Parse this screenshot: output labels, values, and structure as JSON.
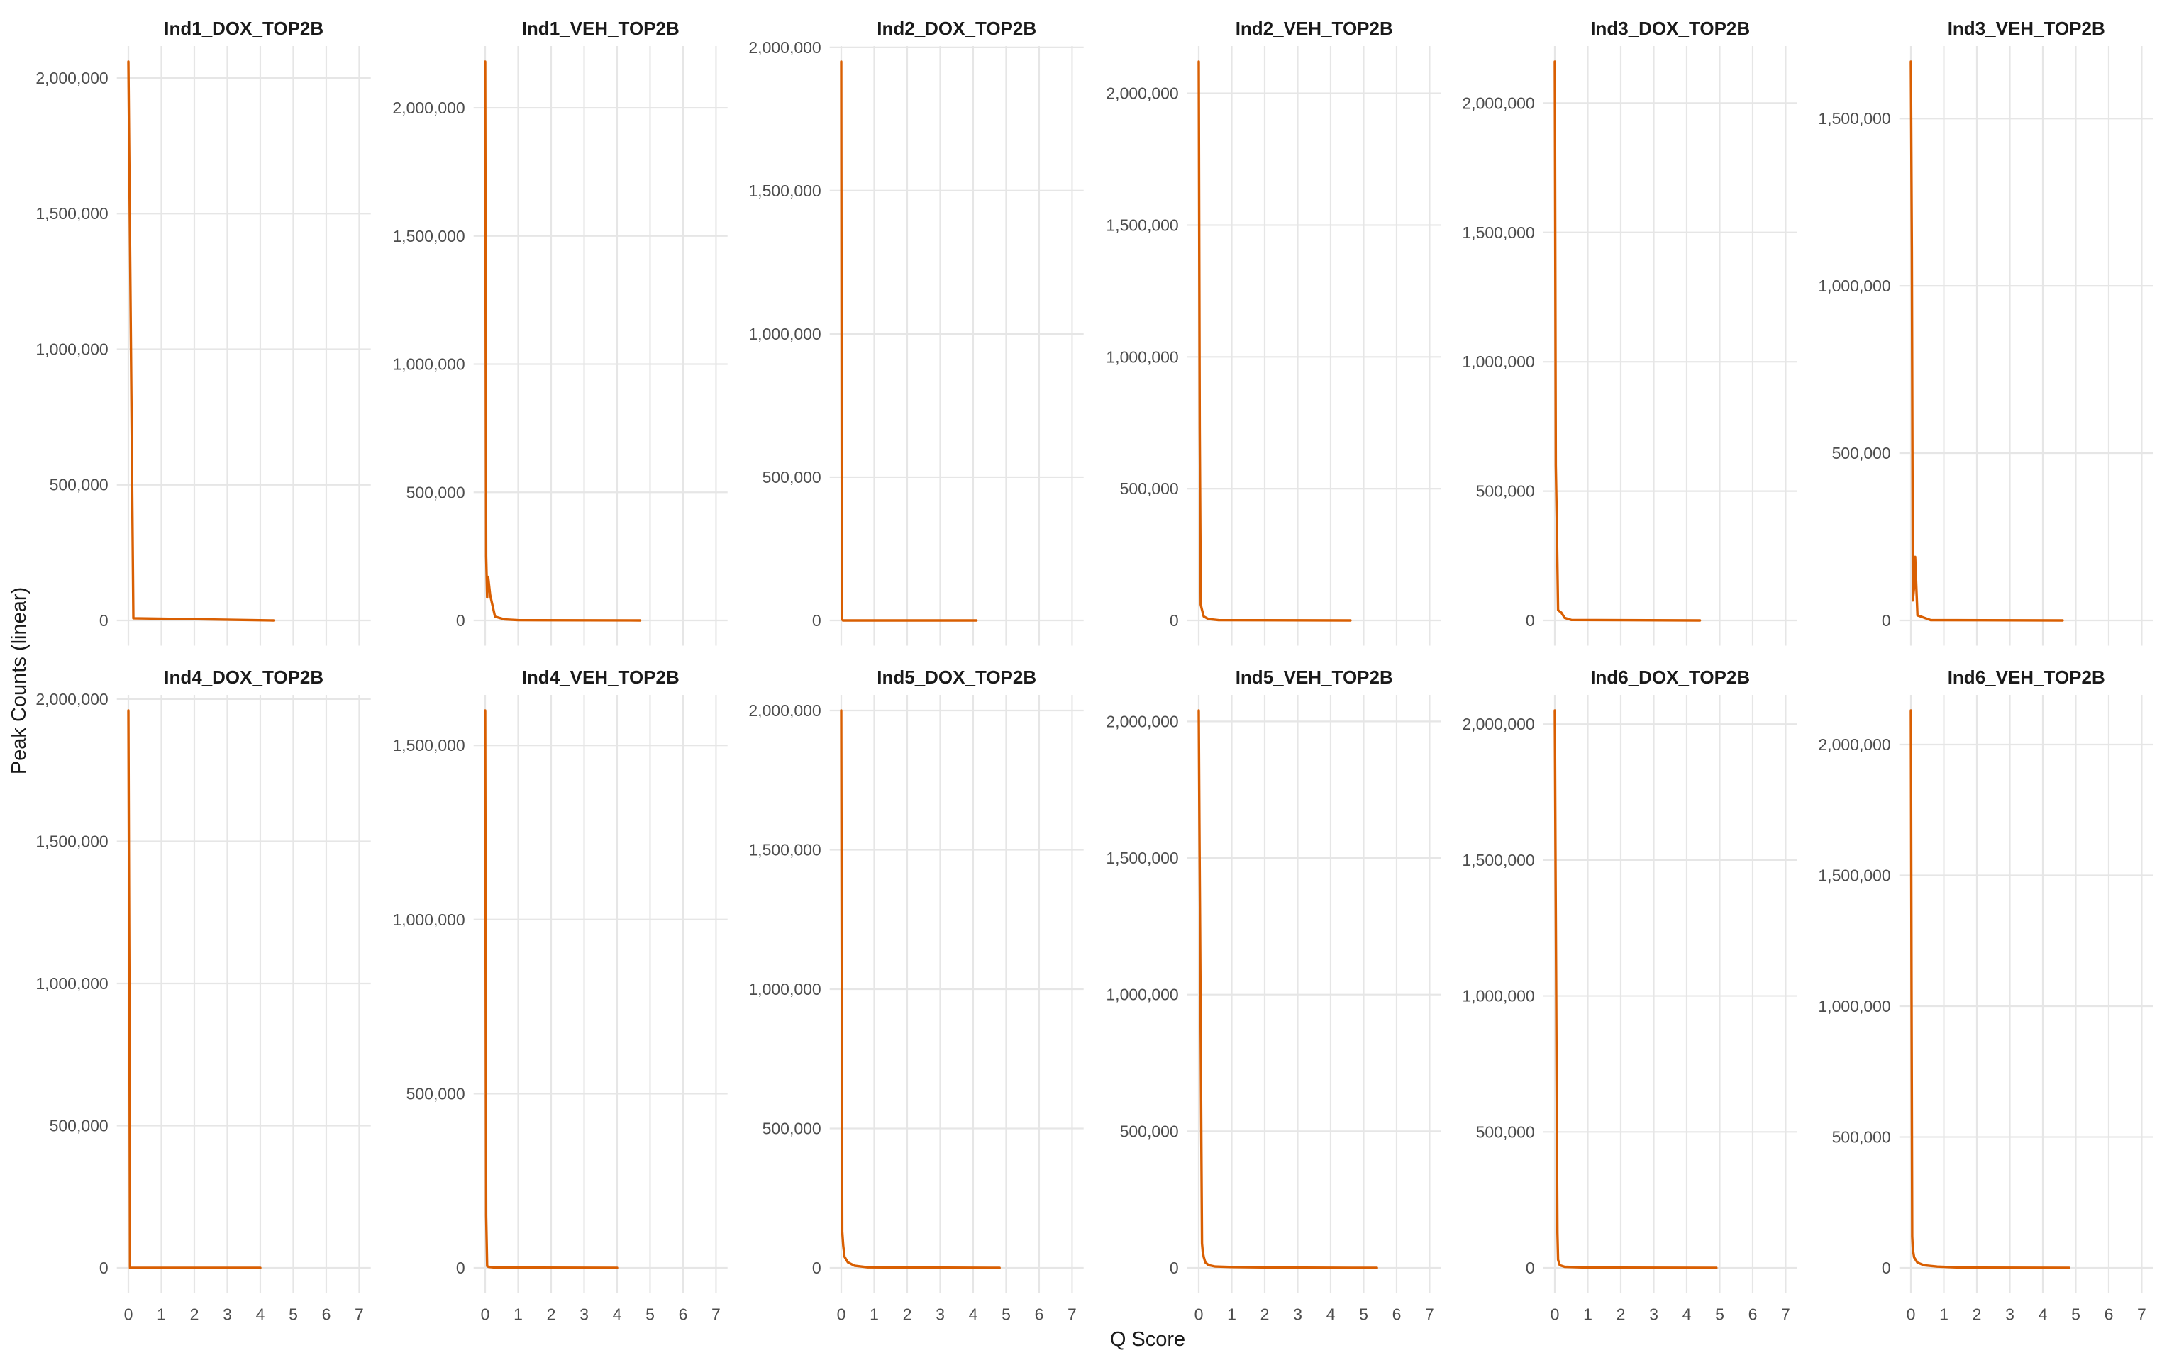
{
  "chart_data": {
    "type": "line",
    "layout": "faceted",
    "xlabel": "Q Score",
    "ylabel": "Peak Counts (linear)",
    "x_ticks": [
      0,
      1,
      2,
      3,
      4,
      5,
      6,
      7
    ],
    "xlim": [
      0,
      7
    ],
    "grid": true,
    "legend": "none",
    "line_color": "#d95f02",
    "panels": [
      {
        "title": "Ind1_DOX_TOP2B",
        "ylim": [
          0,
          2060000
        ],
        "y_ticks": [
          0,
          500000,
          1000000,
          1500000,
          2000000
        ],
        "x": [
          0,
          0.03,
          0.06,
          0.09,
          0.12,
          0.15,
          4.4
        ],
        "y": [
          2060000,
          1650000,
          1240000,
          830000,
          410000,
          8000,
          0
        ]
      },
      {
        "title": "Ind1_VEH_TOP2B",
        "ylim": [
          0,
          2180000
        ],
        "y_ticks": [
          0,
          500000,
          1000000,
          1500000,
          2000000
        ],
        "x": [
          0,
          0.03,
          0.06,
          0.09,
          0.15,
          0.3,
          0.6,
          1.0,
          4.7
        ],
        "y": [
          2180000,
          250000,
          90000,
          170000,
          100000,
          15000,
          4000,
          1000,
          0
        ]
      },
      {
        "title": "Ind2_DOX_TOP2B",
        "ylim": [
          0,
          1950000
        ],
        "y_ticks": [
          0,
          500000,
          1000000,
          1500000,
          2000000
        ],
        "x": [
          0,
          0.02,
          0.05,
          4.1
        ],
        "y": [
          1950000,
          5000,
          0,
          0
        ]
      },
      {
        "title": "Ind2_VEH_TOP2B",
        "ylim": [
          0,
          2120000
        ],
        "y_ticks": [
          0,
          500000,
          1000000,
          1500000,
          2000000
        ],
        "x": [
          0,
          0.03,
          0.06,
          0.1,
          0.15,
          0.3,
          0.6,
          4.6
        ],
        "y": [
          2120000,
          730000,
          60000,
          40000,
          15000,
          5000,
          1000,
          0
        ]
      },
      {
        "title": "Ind3_DOX_TOP2B",
        "ylim": [
          0,
          2160000
        ],
        "y_ticks": [
          0,
          500000,
          1000000,
          1500000,
          2000000
        ],
        "x": [
          0,
          0.03,
          0.06,
          0.1,
          0.2,
          0.3,
          0.5,
          4.4
        ],
        "y": [
          2160000,
          600000,
          380000,
          40000,
          30000,
          10000,
          2000,
          0
        ]
      },
      {
        "title": "Ind3_VEH_TOP2B",
        "ylim": [
          0,
          1670000
        ],
        "y_ticks": [
          0,
          500000,
          1000000,
          1500000
        ],
        "x": [
          0,
          0.03,
          0.06,
          0.1,
          0.13,
          0.2,
          0.35,
          0.6,
          4.6
        ],
        "y": [
          1670000,
          1100000,
          60000,
          100000,
          190000,
          15000,
          10000,
          1000,
          0
        ]
      },
      {
        "title": "Ind4_DOX_TOP2B",
        "ylim": [
          0,
          1960000
        ],
        "y_ticks": [
          0,
          500000,
          1000000,
          1500000,
          2000000
        ],
        "x": [
          0,
          0.03,
          0.05,
          4.0
        ],
        "y": [
          1960000,
          980000,
          0,
          0
        ]
      },
      {
        "title": "Ind4_VEH_TOP2B",
        "ylim": [
          0,
          1600000
        ],
        "y_ticks": [
          0,
          500000,
          1000000,
          1500000
        ],
        "x": [
          0,
          0.03,
          0.06,
          0.1,
          0.3,
          4.0
        ],
        "y": [
          1600000,
          150000,
          5000,
          3000,
          1000,
          0
        ]
      },
      {
        "title": "Ind5_DOX_TOP2B",
        "ylim": [
          0,
          2000000
        ],
        "y_ticks": [
          0,
          500000,
          1000000,
          1500000,
          2000000
        ],
        "x": [
          0,
          0.03,
          0.06,
          0.1,
          0.2,
          0.4,
          0.8,
          4.8
        ],
        "y": [
          2000000,
          130000,
          80000,
          40000,
          20000,
          8000,
          2000,
          0
        ]
      },
      {
        "title": "Ind5_VEH_TOP2B",
        "ylim": [
          0,
          2040000
        ],
        "y_ticks": [
          0,
          500000,
          1000000,
          1500000,
          2000000
        ],
        "x": [
          0,
          0.02,
          0.04,
          0.06,
          0.08,
          0.1,
          0.12,
          0.15,
          0.2,
          0.3,
          0.5,
          1.0,
          2.5,
          5.4
        ],
        "y": [
          2040000,
          1640000,
          1240000,
          840000,
          440000,
          90000,
          60000,
          40000,
          20000,
          10000,
          5000,
          3000,
          1000,
          0
        ]
      },
      {
        "title": "Ind6_DOX_TOP2B",
        "ylim": [
          0,
          2050000
        ],
        "y_ticks": [
          0,
          500000,
          1000000,
          1500000,
          2000000
        ],
        "x": [
          0,
          0.02,
          0.04,
          0.06,
          0.08,
          0.1,
          0.15,
          0.3,
          1.0,
          4.9
        ],
        "y": [
          2050000,
          1550000,
          1050000,
          550000,
          130000,
          30000,
          10000,
          4000,
          1000,
          0
        ]
      },
      {
        "title": "Ind6_VEH_TOP2B",
        "ylim": [
          0,
          2130000
        ],
        "y_ticks": [
          0,
          500000,
          1000000,
          1500000,
          2000000
        ],
        "x": [
          0,
          0.02,
          0.04,
          0.06,
          0.1,
          0.2,
          0.4,
          0.8,
          1.5,
          4.8
        ],
        "y": [
          2130000,
          1110000,
          120000,
          70000,
          40000,
          20000,
          10000,
          5000,
          1000,
          0
        ]
      }
    ]
  }
}
